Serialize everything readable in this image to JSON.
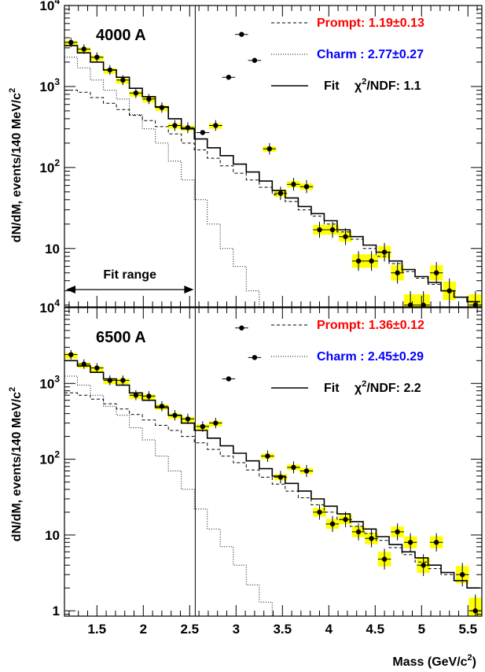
{
  "y_axis_label": "dN/dM, events/140 MeV/c",
  "y_axis_label_sup": "2",
  "x_axis_label": "Mass (GeV/c",
  "x_axis_label_sup": "2",
  "x_axis_label_end": ")",
  "fit_range_label": "Fit range",
  "colors": {
    "prompt": "#ff0000",
    "charm": "#0000ff",
    "error_band": "#ffff00"
  },
  "chart_data": [
    {
      "type": "histogram",
      "title": "4000 A",
      "x_range": [
        1.15,
        5.65
      ],
      "y_scale": "log",
      "ylim": [
        1.9,
        10000
      ],
      "y_tick_labels": [
        "10",
        "10",
        "10",
        "10"
      ],
      "y_tick_exponents": [
        "4",
        "3",
        "2",
        ""
      ],
      "fit_range": [
        1.2,
        2.56
      ],
      "legend": {
        "prompt": "Prompt: 1.19±0.13",
        "charm": "Charm : 2.77±0.27",
        "fit": "Fit",
        "chi2": "χ",
        "chi2_sup": "2",
        "chi2_rest": "/NDF:  1.1"
      },
      "bin_edges": [
        1.15,
        1.29,
        1.43,
        1.57,
        1.71,
        1.85,
        1.99,
        2.13,
        2.27,
        2.41,
        2.55,
        2.69,
        2.83,
        2.97,
        3.11,
        3.25,
        3.39,
        3.53,
        3.67,
        3.81,
        3.95,
        4.09,
        4.23,
        4.37,
        4.51,
        4.65,
        4.79,
        4.93,
        5.07,
        5.21,
        5.35,
        5.49,
        5.63
      ],
      "fit": [
        3200,
        2600,
        2000,
        1600,
        1300,
        950,
        750,
        560,
        400,
        300,
        225,
        175,
        140,
        110,
        88,
        68,
        52,
        42,
        33,
        27,
        22,
        17,
        14,
        11,
        9,
        7,
        5.5,
        4.5,
        3.8,
        3,
        2.5,
        2.2
      ],
      "prompt": [
        900,
        850,
        730,
        620,
        520,
        440,
        380,
        320,
        260,
        200,
        165,
        130,
        105,
        85,
        70,
        57,
        46,
        38,
        30,
        25,
        20,
        16,
        13,
        10,
        8,
        6.5,
        5.2,
        4.3,
        3.6,
        3,
        2.5,
        2.2
      ],
      "charm": [
        2300,
        1700,
        1200,
        900,
        700,
        450,
        300,
        200,
        120,
        70,
        40,
        20,
        10,
        6,
        3,
        1.5,
        0.5,
        0.5,
        0.5,
        0.5,
        0.5,
        0.5,
        0.5,
        0.5,
        0.5,
        0.5,
        0.5,
        0.5,
        0.5,
        0.5,
        0.5,
        0.5
      ],
      "points": [
        {
          "x": 1.22,
          "y": 3500,
          "band": true
        },
        {
          "x": 1.36,
          "y": 2900,
          "band": true
        },
        {
          "x": 1.5,
          "y": 2300,
          "band": true
        },
        {
          "x": 1.64,
          "y": 1600,
          "band": true
        },
        {
          "x": 1.78,
          "y": 1200,
          "band": true
        },
        {
          "x": 1.92,
          "y": 830,
          "band": true
        },
        {
          "x": 2.06,
          "y": 700,
          "band": true
        },
        {
          "x": 2.2,
          "y": 550,
          "band": true
        },
        {
          "x": 2.34,
          "y": 330,
          "band": true
        },
        {
          "x": 2.48,
          "y": 310,
          "band": true
        },
        {
          "x": 2.64,
          "y": 270,
          "band": false
        },
        {
          "x": 2.78,
          "y": 330,
          "band": true
        },
        {
          "x": 2.92,
          "y": 1300,
          "band": false
        },
        {
          "x": 3.06,
          "y": 4400,
          "band": false
        },
        {
          "x": 3.2,
          "y": 2100,
          "band": false
        },
        {
          "x": 3.36,
          "y": 170,
          "band": true
        },
        {
          "x": 3.48,
          "y": 48,
          "band": true
        },
        {
          "x": 3.62,
          "y": 62,
          "band": true
        },
        {
          "x": 3.76,
          "y": 58,
          "band": true
        },
        {
          "x": 3.9,
          "y": 17,
          "band": true
        },
        {
          "x": 4.04,
          "y": 17,
          "band": true
        },
        {
          "x": 4.18,
          "y": 14,
          "band": true
        },
        {
          "x": 4.32,
          "y": 7,
          "band": true
        },
        {
          "x": 4.46,
          "y": 7,
          "band": true
        },
        {
          "x": 4.6,
          "y": 9,
          "band": true
        },
        {
          "x": 4.74,
          "y": 5,
          "band": true
        },
        {
          "x": 4.88,
          "y": 2,
          "band": true
        },
        {
          "x": 5.02,
          "y": 2,
          "band": true
        },
        {
          "x": 5.16,
          "y": 5,
          "band": true
        },
        {
          "x": 5.3,
          "y": 3,
          "band": true
        },
        {
          "x": 5.58,
          "y": 2,
          "band": true
        }
      ]
    },
    {
      "type": "histogram",
      "title": "6500 A",
      "x_range": [
        1.15,
        5.65
      ],
      "y_scale": "log",
      "ylim": [
        0.85,
        10000
      ],
      "y_tick_labels": [
        "10",
        "10",
        "10",
        "10",
        "1"
      ],
      "y_tick_exponents": [
        "4",
        "3",
        "2",
        "",
        ""
      ],
      "x_ticks": [
        "1.5",
        "2",
        "2.5",
        "3",
        "3.5",
        "4",
        "4.5",
        "5",
        "5.5"
      ],
      "legend": {
        "prompt": "Prompt: 1.36±0.12",
        "charm": "Charm : 2.45±0.29",
        "fit": "Fit",
        "chi2": "χ",
        "chi2_sup": "2",
        "chi2_rest": "/NDF:  2.2"
      },
      "bin_edges": [
        1.15,
        1.29,
        1.43,
        1.57,
        1.71,
        1.85,
        1.99,
        2.13,
        2.27,
        2.41,
        2.55,
        2.69,
        2.83,
        2.97,
        3.11,
        3.25,
        3.39,
        3.53,
        3.67,
        3.81,
        3.95,
        4.09,
        4.23,
        4.37,
        4.51,
        4.65,
        4.79,
        4.93,
        5.07,
        5.21,
        5.35,
        5.49,
        5.63
      ],
      "fit": [
        2000,
        1700,
        1400,
        1150,
        950,
        750,
        600,
        480,
        380,
        300,
        240,
        190,
        150,
        120,
        95,
        75,
        60,
        48,
        38,
        30,
        24,
        19,
        15,
        12,
        9.5,
        7.5,
        6,
        5,
        4,
        3.2,
        2.5,
        2
      ],
      "prompt": [
        750,
        700,
        620,
        540,
        460,
        390,
        330,
        280,
        240,
        200,
        165,
        135,
        110,
        90,
        72,
        58,
        47,
        38,
        31,
        25,
        20,
        16,
        13,
        10.5,
        8.5,
        6.8,
        5.5,
        4.4,
        3.6,
        3,
        2.5,
        2
      ],
      "charm": [
        1250,
        950,
        700,
        500,
        380,
        260,
        180,
        110,
        70,
        40,
        22,
        12,
        7,
        4,
        2.2,
        1.3,
        0.6,
        0.6,
        0.6,
        0.6,
        0.6,
        0.6,
        0.6,
        0.6,
        0.6,
        0.6,
        0.6,
        0.6,
        0.6,
        0.6,
        0.6,
        0.6
      ],
      "points": [
        {
          "x": 1.22,
          "y": 2400,
          "band": true
        },
        {
          "x": 1.36,
          "y": 1800,
          "band": true
        },
        {
          "x": 1.5,
          "y": 1600,
          "band": true
        },
        {
          "x": 1.64,
          "y": 1100,
          "band": true
        },
        {
          "x": 1.78,
          "y": 1100,
          "band": true
        },
        {
          "x": 1.92,
          "y": 700,
          "band": true
        },
        {
          "x": 2.06,
          "y": 680,
          "band": true
        },
        {
          "x": 2.2,
          "y": 500,
          "band": true
        },
        {
          "x": 2.34,
          "y": 380,
          "band": true
        },
        {
          "x": 2.48,
          "y": 340,
          "band": true
        },
        {
          "x": 2.64,
          "y": 270,
          "band": true
        },
        {
          "x": 2.78,
          "y": 300,
          "band": true
        },
        {
          "x": 2.92,
          "y": 1150,
          "band": false
        },
        {
          "x": 3.06,
          "y": 5400,
          "band": false
        },
        {
          "x": 3.2,
          "y": 2200,
          "band": false
        },
        {
          "x": 3.34,
          "y": 110,
          "band": true
        },
        {
          "x": 3.48,
          "y": 58,
          "band": true
        },
        {
          "x": 3.62,
          "y": 78,
          "band": true
        },
        {
          "x": 3.76,
          "y": 70,
          "band": true
        },
        {
          "x": 3.9,
          "y": 20,
          "band": true
        },
        {
          "x": 4.04,
          "y": 14,
          "band": true
        },
        {
          "x": 4.18,
          "y": 16,
          "band": true
        },
        {
          "x": 4.32,
          "y": 11,
          "band": true
        },
        {
          "x": 4.46,
          "y": 9,
          "band": true
        },
        {
          "x": 4.6,
          "y": 4.8,
          "band": true
        },
        {
          "x": 4.74,
          "y": 11,
          "band": true
        },
        {
          "x": 4.88,
          "y": 8,
          "band": true
        },
        {
          "x": 5.02,
          "y": 4,
          "band": true
        },
        {
          "x": 5.16,
          "y": 8,
          "band": true
        },
        {
          "x": 5.44,
          "y": 3,
          "band": true
        },
        {
          "x": 5.58,
          "y": 1,
          "band": true
        }
      ]
    }
  ]
}
